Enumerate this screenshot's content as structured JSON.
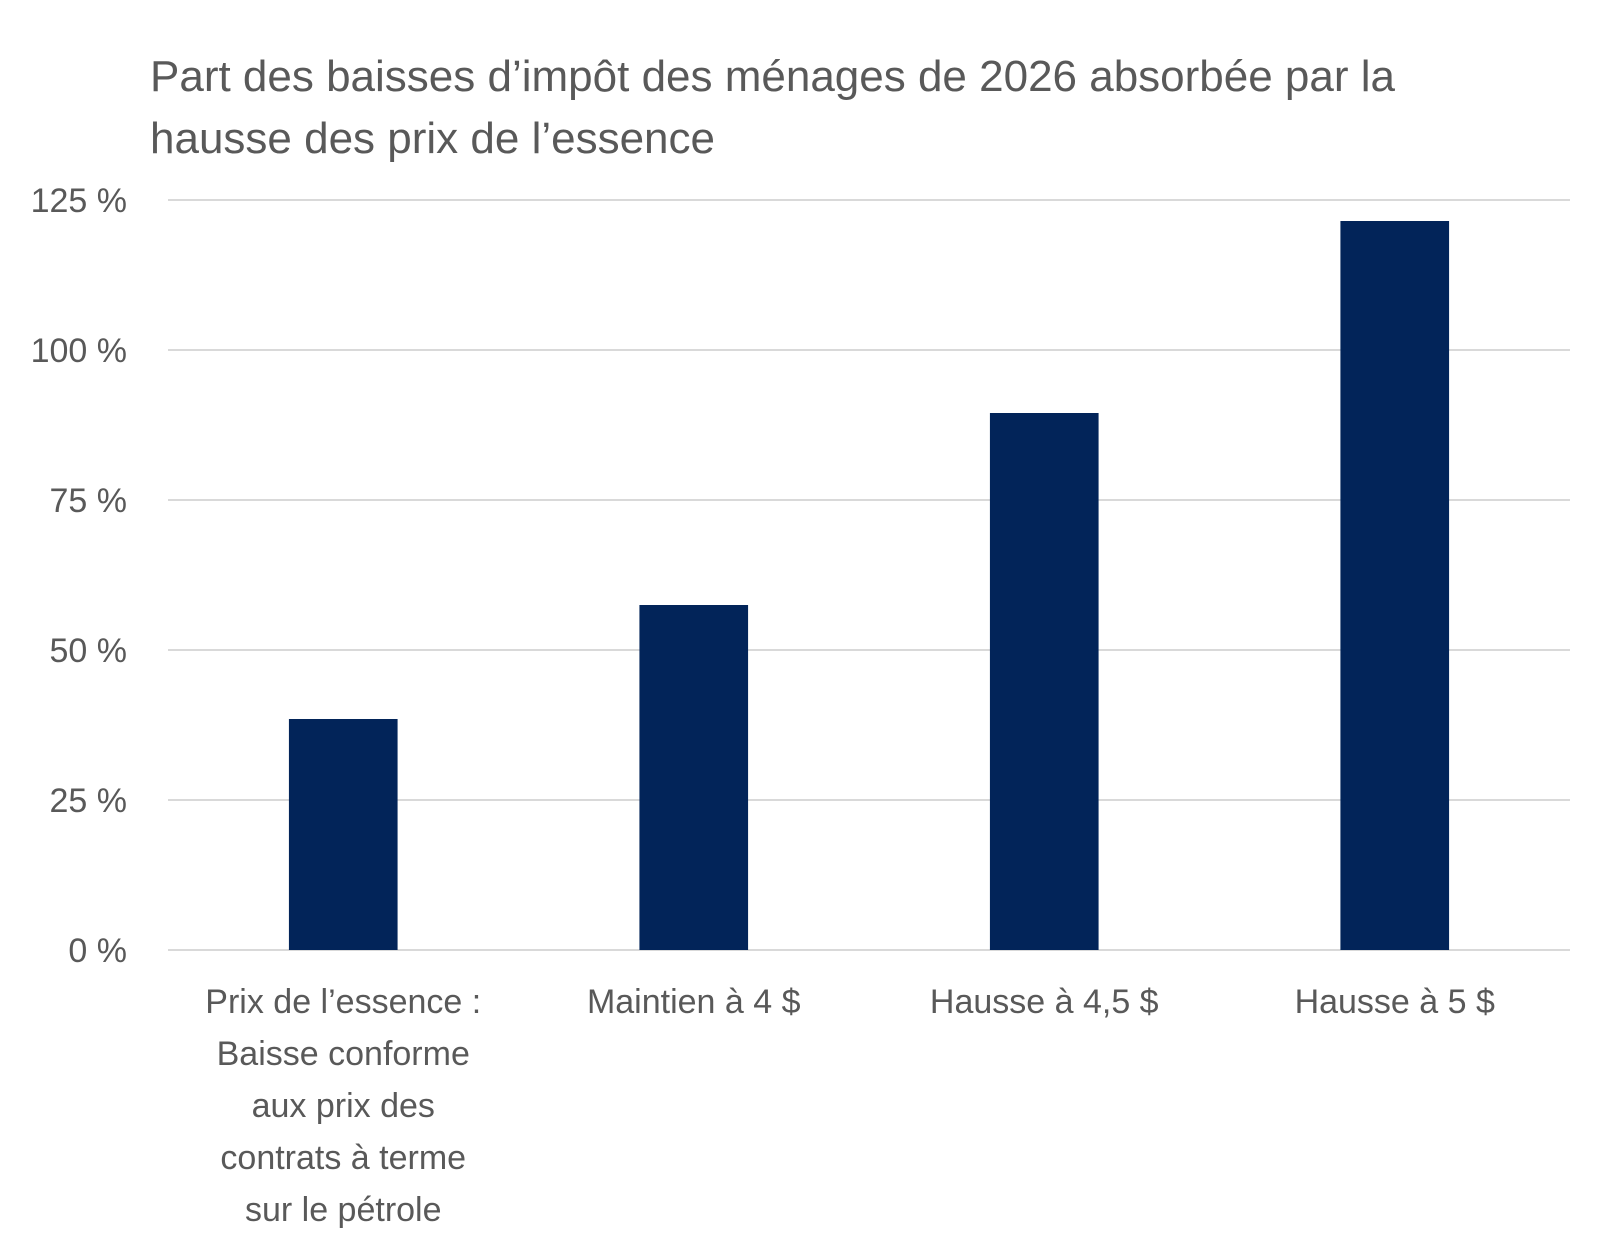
{
  "chart_data": {
    "type": "bar",
    "title": "Part des baisses d’impôt des ménages de 2026 absorbée par la hausse des prix de l’essence",
    "xlabel": "",
    "ylabel": "",
    "ylim": [
      0,
      125
    ],
    "yticks": [
      0,
      25,
      50,
      75,
      100,
      125
    ],
    "ytick_labels": [
      "0 %",
      "25 %",
      "50 %",
      "75 %",
      "100 %",
      "125 %"
    ],
    "grid": true,
    "legend": "none",
    "categories": [
      "Prix de l’essence : Baisse conforme aux prix des contrats à terme sur le pétrole",
      "Maintien à 4 $",
      "Hausse à 4,5 $",
      "Hausse à 5 $"
    ],
    "values": [
      38.5,
      57.5,
      89.5,
      121.5
    ],
    "colors": {
      "bar": "#022459",
      "text": "#595959",
      "grid": "#d9d9d9"
    }
  }
}
